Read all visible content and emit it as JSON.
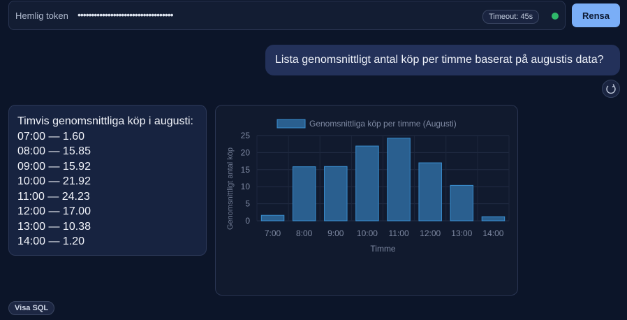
{
  "token_bar": {
    "label": "Hemlig token",
    "value": "•••••••••••••••••••••••••••••••••••",
    "timeout": "Timeout: 45s",
    "clear_label": "Rensa"
  },
  "chat": {
    "user_message": "Lista genomsnittligt antal köp per timme baserat på augustis data?",
    "answer_title": "Timvis genomsnittliga köp i augusti:",
    "answer_rows": [
      "07:00 — 1.60",
      "08:00 — 15.85",
      "09:00 — 15.92",
      "10:00 — 21.92",
      "11:00 — 24.23",
      "12:00 — 17.00",
      "13:00 — 10.38",
      "14:00 — 1.20"
    ]
  },
  "footer": {
    "sql_label": "Visa SQL"
  },
  "colors": {
    "accent": "#7aaef7",
    "status": "#2fb86a",
    "bar_fill": "#2a5f8f",
    "bar_stroke": "#3a8fd0"
  },
  "chart_data": {
    "type": "bar",
    "categories": [
      "7:00",
      "8:00",
      "9:00",
      "10:00",
      "11:00",
      "12:00",
      "13:00",
      "14:00"
    ],
    "series": [
      {
        "name": "Genomsnittliga köp per timme (Augusti)",
        "values": [
          1.6,
          15.85,
          15.92,
          21.92,
          24.23,
          17.0,
          10.38,
          1.2
        ]
      }
    ],
    "xlabel": "Timme",
    "ylabel": "Genomsnittligt antal köp",
    "ylim": [
      0,
      25
    ],
    "yticks": [
      0,
      5,
      10,
      15,
      20,
      25
    ],
    "grid": true,
    "legend": "top"
  }
}
